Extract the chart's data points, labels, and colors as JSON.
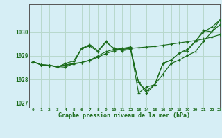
{
  "title": "Graphe pression niveau de la mer (hPa)",
  "background_color": "#d6eef5",
  "grid_color": "#b8d8cc",
  "line_color": "#1a6b1a",
  "xlim": [
    -0.5,
    23
  ],
  "ylim": [
    1026.8,
    1031.2
  ],
  "yticks": [
    1027,
    1028,
    1029,
    1030
  ],
  "xticks": [
    0,
    1,
    2,
    3,
    4,
    5,
    6,
    7,
    8,
    9,
    10,
    11,
    12,
    13,
    14,
    15,
    16,
    17,
    18,
    19,
    20,
    21,
    22,
    23
  ],
  "series": [
    [
      1028.75,
      1028.62,
      1028.6,
      1028.55,
      1028.62,
      1028.68,
      1028.72,
      1028.82,
      1029.0,
      1029.18,
      1029.28,
      1029.32,
      1029.38,
      1027.42,
      1027.68,
      1027.78,
      1028.22,
      1028.68,
      1028.82,
      1029.02,
      1029.18,
      1029.62,
      1030.02,
      1030.32
    ],
    [
      1028.75,
      1028.62,
      1028.6,
      1028.55,
      1028.52,
      1028.68,
      1029.32,
      1029.42,
      1029.18,
      1029.58,
      1029.32,
      1029.22,
      1029.28,
      1027.88,
      1027.42,
      1027.78,
      1028.68,
      1028.82,
      1029.12,
      1029.22,
      1029.62,
      1030.02,
      1030.22,
      1030.52
    ],
    [
      1028.75,
      1028.62,
      1028.6,
      1028.52,
      1028.68,
      1028.78,
      1029.32,
      1029.48,
      1029.22,
      1029.62,
      1029.28,
      1029.28,
      1029.32,
      1027.88,
      1027.52,
      1027.78,
      1028.68,
      1028.82,
      1029.12,
      1029.28,
      1029.62,
      1030.08,
      1030.02,
      1030.52
    ],
    [
      1028.75,
      1028.62,
      1028.6,
      1028.55,
      1028.6,
      1028.65,
      1028.72,
      1028.8,
      1028.95,
      1029.1,
      1029.22,
      1029.28,
      1029.32,
      1029.35,
      1029.38,
      1029.4,
      1029.45,
      1029.5,
      1029.55,
      1029.6,
      1029.65,
      1029.72,
      1029.8,
      1029.9
    ]
  ]
}
